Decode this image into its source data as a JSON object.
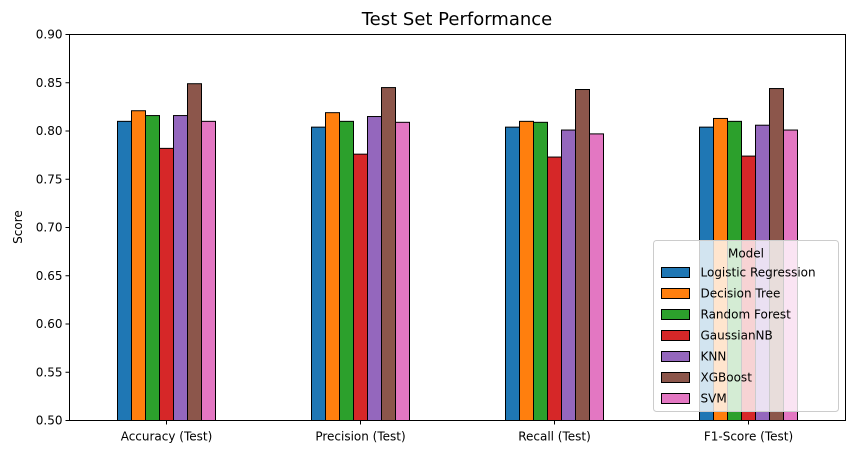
{
  "chart_data": {
    "type": "bar",
    "title": "Test Set Performance",
    "xlabel": "",
    "ylabel": "Score",
    "ylim": [
      0.5,
      0.9
    ],
    "yticks": [
      0.5,
      0.55,
      0.6,
      0.65,
      0.7,
      0.75,
      0.8,
      0.85,
      0.9
    ],
    "ytick_labels": [
      "0.50",
      "0.55",
      "0.60",
      "0.65",
      "0.70",
      "0.75",
      "0.80",
      "0.85",
      "0.90"
    ],
    "categories": [
      "Accuracy (Test)",
      "Precision (Test)",
      "Recall (Test)",
      "F1-Score (Test)"
    ],
    "grid": false,
    "legend": {
      "title": "Model",
      "placement": "bottom-right"
    },
    "series": [
      {
        "name": "Logistic Regression",
        "color": "#1f77b4",
        "values": [
          0.81,
          0.804,
          0.804,
          0.804
        ]
      },
      {
        "name": "Decision Tree",
        "color": "#ff7f0e",
        "values": [
          0.821,
          0.819,
          0.81,
          0.813
        ]
      },
      {
        "name": "Random Forest",
        "color": "#2ca02c",
        "values": [
          0.816,
          0.81,
          0.809,
          0.81
        ]
      },
      {
        "name": "GaussianNB",
        "color": "#d62728",
        "values": [
          0.782,
          0.776,
          0.773,
          0.774
        ]
      },
      {
        "name": "KNN",
        "color": "#9467bd",
        "values": [
          0.816,
          0.815,
          0.801,
          0.806
        ]
      },
      {
        "name": "XGBoost",
        "color": "#8c564b",
        "values": [
          0.849,
          0.845,
          0.843,
          0.844
        ]
      },
      {
        "name": "SVM",
        "color": "#e377c2",
        "values": [
          0.81,
          0.809,
          0.797,
          0.801
        ]
      }
    ]
  }
}
